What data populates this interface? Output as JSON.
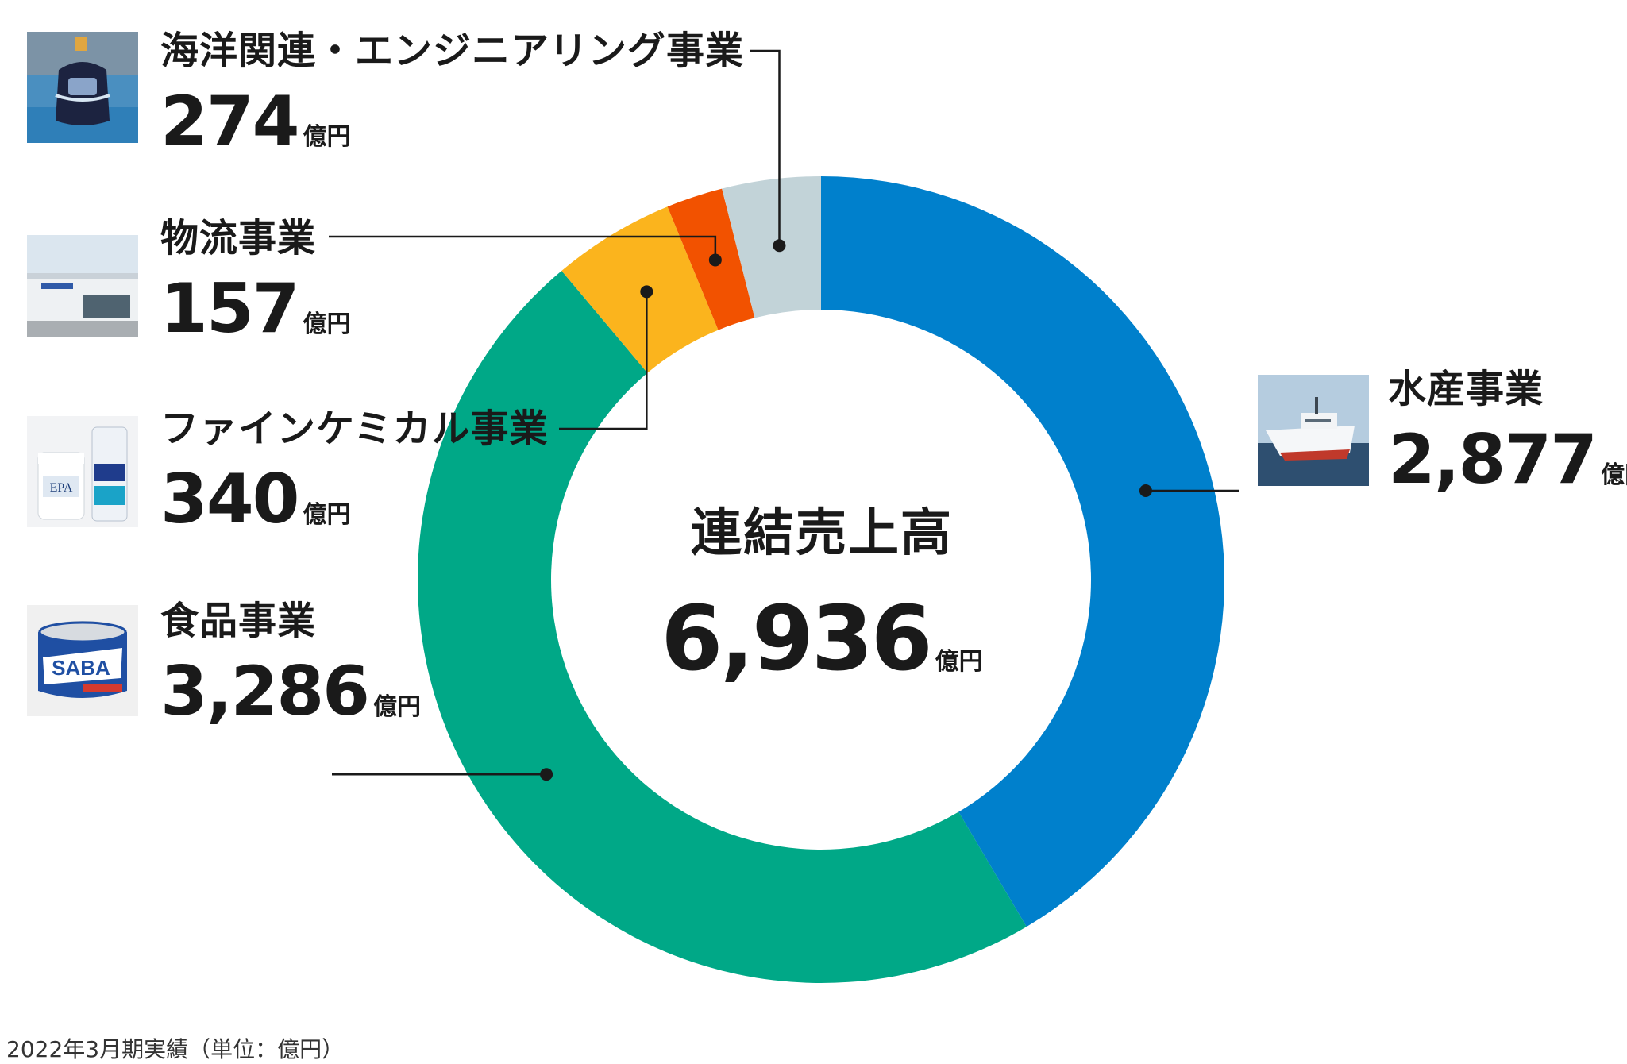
{
  "chart_data": {
    "type": "donut",
    "center": {
      "title": "連結売上高",
      "total": "6,936",
      "unit": "億円"
    },
    "categories": [
      "水産事業",
      "食品事業",
      "ファインケミカル事業",
      "物流事業",
      "海洋関連・エンジニアリング事業"
    ],
    "values": [
      2877,
      3286,
      340,
      157,
      274
    ],
    "value_labels": [
      "2,877",
      "3,286",
      "340",
      "157",
      "274"
    ],
    "unit": "億円",
    "colors": [
      "#0080cc",
      "#00a887",
      "#fbb41d",
      "#f25200",
      "#c2d3d8"
    ],
    "footnote": "2022年3月期実績（単位：億円）"
  },
  "images": {
    "suisan": "fishing-ship-photo",
    "shokuhin": "saba-can-photo",
    "fine_chemical": "epa-supplement-photo",
    "butsuryu": "warehouse-building-photo",
    "kaiyo": "underwater-vehicle-photo"
  }
}
